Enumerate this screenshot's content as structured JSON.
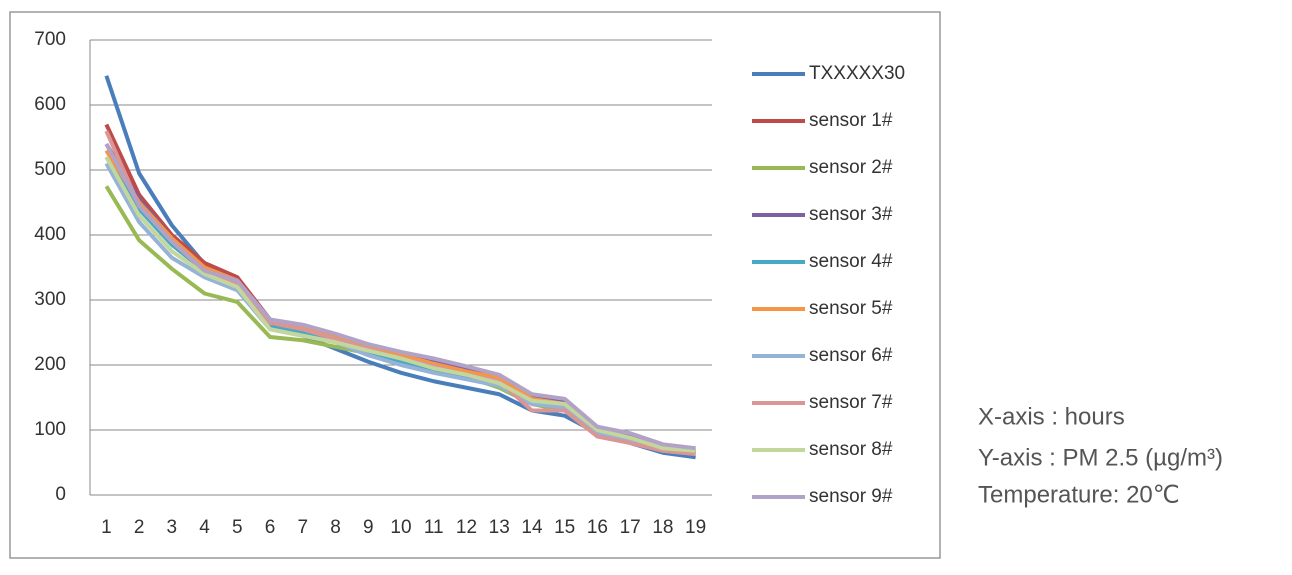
{
  "chart_data": {
    "type": "line",
    "categories": [
      "1",
      "2",
      "3",
      "4",
      "5",
      "6",
      "7",
      "8",
      "9",
      "10",
      "11",
      "12",
      "13",
      "14",
      "15",
      "16",
      "17",
      "18",
      "19"
    ],
    "ylim": [
      0,
      700
    ],
    "yticks": [
      0,
      100,
      200,
      300,
      400,
      500,
      600,
      700
    ],
    "grid": true,
    "legend": "right",
    "series": [
      {
        "name": "TXXXXX30",
        "color": "#4a7ebb",
        "values": [
          645,
          495,
          415,
          355,
          325,
          265,
          245,
          225,
          205,
          188,
          175,
          165,
          155,
          130,
          122,
          95,
          80,
          65,
          58
        ]
      },
      {
        "name": "sensor 1#",
        "color": "#be4b48",
        "values": [
          570,
          462,
          400,
          357,
          335,
          270,
          255,
          240,
          225,
          212,
          200,
          188,
          178,
          148,
          140,
          95,
          82,
          70,
          65
        ]
      },
      {
        "name": "sensor 2#",
        "color": "#98b954",
        "values": [
          475,
          392,
          348,
          310,
          297,
          243,
          238,
          228,
          218,
          205,
          195,
          182,
          165,
          140,
          130,
          95,
          85,
          72,
          65
        ]
      },
      {
        "name": "sensor 3#",
        "color": "#7d60a0",
        "values": [
          540,
          455,
          395,
          350,
          325,
          265,
          258,
          245,
          230,
          218,
          205,
          195,
          183,
          150,
          145,
          100,
          90,
          72,
          68
        ]
      },
      {
        "name": "sensor 4#",
        "color": "#46aac5",
        "values": [
          520,
          440,
          385,
          345,
          325,
          258,
          250,
          238,
          220,
          205,
          193,
          182,
          170,
          140,
          135,
          98,
          88,
          70,
          65
        ]
      },
      {
        "name": "sensor 5#",
        "color": "#f69546",
        "values": [
          530,
          450,
          395,
          350,
          330,
          268,
          258,
          242,
          228,
          215,
          202,
          190,
          180,
          148,
          140,
          98,
          85,
          70,
          65
        ]
      },
      {
        "name": "sensor 6#",
        "color": "#95b3d7",
        "values": [
          510,
          420,
          365,
          335,
          315,
          255,
          245,
          235,
          215,
          200,
          188,
          178,
          168,
          140,
          135,
          95,
          85,
          68,
          63
        ]
      },
      {
        "name": "sensor 7#",
        "color": "#d99694",
        "values": [
          560,
          445,
          390,
          345,
          325,
          265,
          255,
          240,
          225,
          210,
          198,
          185,
          175,
          130,
          130,
          90,
          80,
          68,
          63
        ]
      },
      {
        "name": "sensor 8#",
        "color": "#c3d69b",
        "values": [
          520,
          430,
          375,
          340,
          320,
          255,
          245,
          235,
          222,
          210,
          195,
          185,
          172,
          145,
          140,
          100,
          88,
          72,
          68
        ]
      },
      {
        "name": "sensor 9#",
        "color": "#b3a2c7",
        "values": [
          540,
          445,
          390,
          345,
          330,
          270,
          262,
          248,
          232,
          220,
          210,
          198,
          185,
          155,
          148,
          105,
          95,
          78,
          72
        ]
      }
    ]
  },
  "annotations": [
    "X-axis : hours",
    "Y-axis : PM 2.5 (µg/m³)",
    "Temperature: 20℃"
  ]
}
